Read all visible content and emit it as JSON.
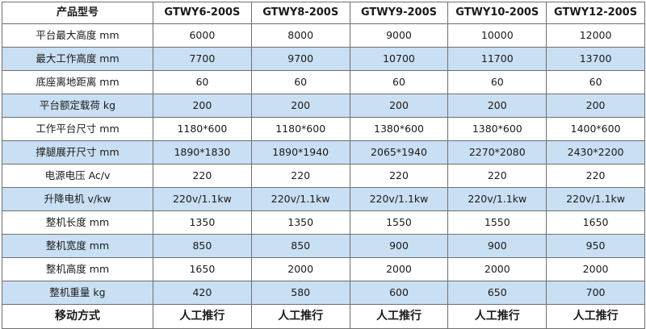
{
  "table": {
    "headers": [
      "产品型号",
      "GTWY6-200S",
      "GTWY8-200S",
      "GTWY9-200S",
      "GTWY10-200S",
      "GTWY12-200S"
    ],
    "rows": [
      {
        "label": "平台最大高度 mm",
        "values": [
          "6000",
          "8000",
          "9000",
          "10000",
          "12000"
        ]
      },
      {
        "label": "最大工作高度 mm",
        "values": [
          "7700",
          "9700",
          "10700",
          "11700",
          "13700"
        ]
      },
      {
        "label": "底座离地距离 mm",
        "values": [
          "60",
          "60",
          "60",
          "60",
          "60"
        ]
      },
      {
        "label": "平台额定载荷 kg",
        "values": [
          "200",
          "200",
          "200",
          "200",
          "200"
        ]
      },
      {
        "label": "工作平台尺寸 mm",
        "values": [
          "1180*600",
          "1180*600",
          "1380*600",
          "1380*600",
          "1400*600"
        ]
      },
      {
        "label": "撑腿展开尺寸 mm",
        "values": [
          "1890*1830",
          "1890*1940",
          "2065*1940",
          "2270*2080",
          "2430*2200"
        ]
      },
      {
        "label": "电源电压 Ac/v",
        "values": [
          "220",
          "220",
          "220",
          "220",
          "220"
        ]
      },
      {
        "label": "升降电机 v/kw",
        "values": [
          "220v/1.1kw",
          "220v/1.1kw",
          "220v/1.1kw",
          "220v/1.1kw",
          "220v/1.1kw"
        ]
      },
      {
        "label": "整机长度 mm",
        "values": [
          "1350",
          "1350",
          "1550",
          "1550",
          "1650"
        ]
      },
      {
        "label": "整机宽度 mm",
        "values": [
          "850",
          "850",
          "900",
          "900",
          "950"
        ]
      },
      {
        "label": "整机高度 mm",
        "values": [
          "1650",
          "2000",
          "2000",
          "2000",
          "2000"
        ]
      },
      {
        "label": "整机重量 kg",
        "values": [
          "420",
          "580",
          "600",
          "650",
          "700"
        ]
      }
    ],
    "footer": {
      "label": "移动方式",
      "values": [
        "人工推行",
        "人工推行",
        "人工推行",
        "人工推行",
        "人工推行"
      ]
    }
  },
  "colors": {
    "row_alt": "#c9dff3",
    "row_plain": "#ffffff",
    "border": "#6f6f6f"
  }
}
